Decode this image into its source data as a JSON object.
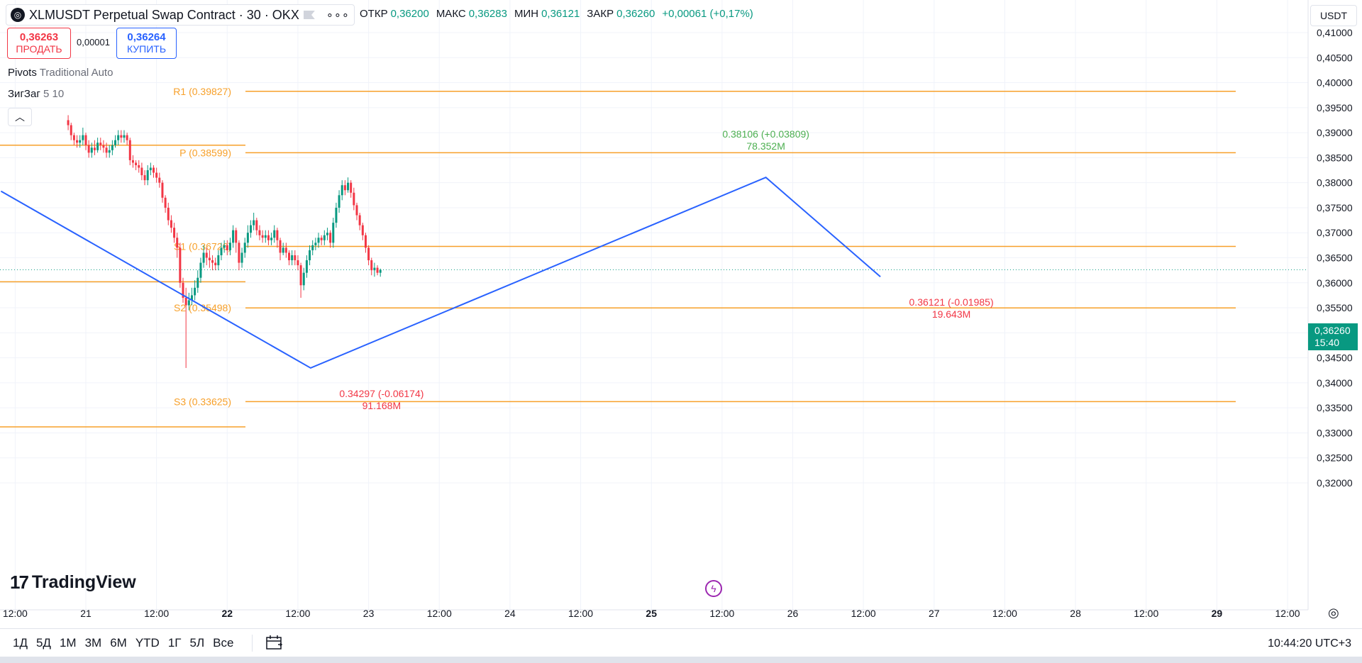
{
  "header": {
    "symbol_title": "XLMUSDT Perpetual Swap Contract · 30 · OKX",
    "more_icon": "more-dots-icon",
    "ohlc": [
      {
        "key": "ОТКР",
        "value": "0,36200"
      },
      {
        "key": "МАКС",
        "value": "0,36283"
      },
      {
        "key": "МИН",
        "value": "0,36121"
      },
      {
        "key": "ЗАКР",
        "value": "0,36260"
      }
    ],
    "change": "+0,00061 (+0,17%)"
  },
  "trade": {
    "sell_price": "0,36263",
    "sell_label": "ПРОДАТЬ",
    "spread": "0,00001",
    "buy_price": "0,36264",
    "buy_label": "КУПИТЬ"
  },
  "indicators": {
    "pivots_name": "Pivots",
    "pivots_args": "Traditional Auto",
    "zigzag_name": "ЗигЗаг",
    "zigzag_args": "5 10"
  },
  "currency": "USDT",
  "last_price": {
    "price": "0,36260",
    "countdown": "15:40"
  },
  "brand": "TradingView",
  "colors": {
    "up": "#089981",
    "down": "#f23645",
    "pivot": "#f7a02a",
    "zigzag": "#2962ff",
    "zz_high_label": "#4caf50",
    "zz_low_label": "#f23645"
  },
  "chart_data": {
    "type": "candlestick",
    "ylim": [
      0.3195,
      0.4135
    ],
    "y_ticks": [
      "0,41000",
      "0,40500",
      "0,40000",
      "0,39500",
      "0,39000",
      "0,38500",
      "0,38000",
      "0,37500",
      "0,37000",
      "0,36500",
      "0,36000",
      "0,35500",
      "0,35000",
      "0,34500",
      "0,34000",
      "0,33500",
      "0,33000",
      "0,32500",
      "0,32000"
    ],
    "x_ticks": [
      {
        "label": "12:00",
        "bold": false
      },
      {
        "label": "21",
        "bold": false
      },
      {
        "label": "12:00",
        "bold": false
      },
      {
        "label": "22",
        "bold": true
      },
      {
        "label": "12:00",
        "bold": false
      },
      {
        "label": "23",
        "bold": false
      },
      {
        "label": "12:00",
        "bold": false
      },
      {
        "label": "24",
        "bold": false
      },
      {
        "label": "12:00",
        "bold": false
      },
      {
        "label": "25",
        "bold": true
      },
      {
        "label": "12:00",
        "bold": false
      },
      {
        "label": "26",
        "bold": false
      },
      {
        "label": "12:00",
        "bold": false
      },
      {
        "label": "27",
        "bold": false
      },
      {
        "label": "12:00",
        "bold": false
      },
      {
        "label": "28",
        "bold": false
      },
      {
        "label": "12:00",
        "bold": false
      },
      {
        "label": "29",
        "bold": true
      },
      {
        "label": "12:00",
        "bold": false
      }
    ],
    "pivots_previous": [
      {
        "label": "",
        "value": 0.3875
      },
      {
        "label": "",
        "value": 0.3602
      },
      {
        "label": "",
        "value": 0.3312
      }
    ],
    "pivots_current": [
      {
        "label": "R1 (0.39827)",
        "value": 0.39827
      },
      {
        "label": "P (0.38599)",
        "value": 0.38599
      },
      {
        "label": "S1 (0.36726)",
        "value": 0.36726
      },
      {
        "label": "S2 (0.35498)",
        "value": 0.35498
      },
      {
        "label": "S3 (0.33625)",
        "value": 0.33625
      }
    ],
    "zigzag": {
      "points": [
        [
          -0.6,
          0.3783
        ],
        [
          1.59,
          0.34297
        ],
        [
          4.81,
          0.38106
        ],
        [
          5.62,
          0.36121
        ]
      ],
      "labels": [
        {
          "text": "0.34297 (-0.06174)",
          "volume": "91.168M",
          "type": "low"
        },
        {
          "text": "0.38106 (+0.03809)",
          "volume": "78.352M",
          "type": "high"
        },
        {
          "text": "0.36121 (-0.01985)",
          "volume": "19.643M",
          "type": "low"
        }
      ]
    },
    "last_price": 0.3626,
    "candles": [
      [
        0.3925,
        0.3915,
        0.3935,
        0.3905
      ],
      [
        0.3915,
        0.3895,
        0.392,
        0.3885
      ],
      [
        0.3895,
        0.3885,
        0.39,
        0.3875
      ],
      [
        0.3885,
        0.388,
        0.3895,
        0.387
      ],
      [
        0.388,
        0.3885,
        0.3895,
        0.387
      ],
      [
        0.3885,
        0.3895,
        0.391,
        0.3875
      ],
      [
        0.3895,
        0.3875,
        0.39,
        0.3865
      ],
      [
        0.3875,
        0.386,
        0.3885,
        0.385
      ],
      [
        0.386,
        0.387,
        0.388,
        0.385
      ],
      [
        0.387,
        0.3865,
        0.3885,
        0.3855
      ],
      [
        0.3865,
        0.388,
        0.389,
        0.386
      ],
      [
        0.388,
        0.3875,
        0.389,
        0.3865
      ],
      [
        0.3875,
        0.387,
        0.3885,
        0.386
      ],
      [
        0.387,
        0.386,
        0.388,
        0.385
      ],
      [
        0.386,
        0.3865,
        0.3875,
        0.385
      ],
      [
        0.3865,
        0.3875,
        0.3885,
        0.3855
      ],
      [
        0.3875,
        0.3885,
        0.3895,
        0.387
      ],
      [
        0.3885,
        0.3895,
        0.3905,
        0.3875
      ],
      [
        0.3895,
        0.389,
        0.3905,
        0.388
      ],
      [
        0.389,
        0.3895,
        0.3905,
        0.388
      ],
      [
        0.3895,
        0.3885,
        0.39,
        0.3875
      ],
      [
        0.3885,
        0.3845,
        0.389,
        0.3835
      ],
      [
        0.3845,
        0.384,
        0.3855,
        0.383
      ],
      [
        0.384,
        0.3835,
        0.3845,
        0.3825
      ],
      [
        0.3835,
        0.383,
        0.3845,
        0.382
      ],
      [
        0.383,
        0.3815,
        0.384,
        0.3805
      ],
      [
        0.3815,
        0.3805,
        0.3825,
        0.3795
      ],
      [
        0.3805,
        0.3825,
        0.3835,
        0.3795
      ],
      [
        0.3825,
        0.383,
        0.384,
        0.3815
      ],
      [
        0.383,
        0.382,
        0.3835,
        0.381
      ],
      [
        0.382,
        0.381,
        0.383,
        0.38
      ],
      [
        0.381,
        0.38,
        0.382,
        0.379
      ],
      [
        0.38,
        0.377,
        0.3805,
        0.376
      ],
      [
        0.377,
        0.375,
        0.3775,
        0.374
      ],
      [
        0.375,
        0.3725,
        0.376,
        0.3715
      ],
      [
        0.3725,
        0.371,
        0.3735,
        0.37
      ],
      [
        0.371,
        0.369,
        0.372,
        0.368
      ],
      [
        0.369,
        0.367,
        0.37,
        0.365
      ],
      [
        0.367,
        0.36,
        0.368,
        0.359
      ],
      [
        0.36,
        0.357,
        0.361,
        0.356
      ],
      [
        0.357,
        0.3555,
        0.359,
        0.34297
      ],
      [
        0.3555,
        0.3565,
        0.358,
        0.3545
      ],
      [
        0.3565,
        0.3575,
        0.359,
        0.3555
      ],
      [
        0.3575,
        0.359,
        0.3605,
        0.3565
      ],
      [
        0.359,
        0.361,
        0.3625,
        0.358
      ],
      [
        0.361,
        0.364,
        0.365,
        0.36
      ],
      [
        0.364,
        0.366,
        0.3675,
        0.363
      ],
      [
        0.366,
        0.365,
        0.367,
        0.3635
      ],
      [
        0.365,
        0.3645,
        0.3665,
        0.363
      ],
      [
        0.3645,
        0.364,
        0.3655,
        0.3625
      ],
      [
        0.364,
        0.3635,
        0.365,
        0.3625
      ],
      [
        0.3635,
        0.3655,
        0.3665,
        0.3625
      ],
      [
        0.3655,
        0.367,
        0.368,
        0.3645
      ],
      [
        0.367,
        0.3675,
        0.3685,
        0.366
      ],
      [
        0.3675,
        0.3665,
        0.3685,
        0.3655
      ],
      [
        0.3665,
        0.368,
        0.369,
        0.3655
      ],
      [
        0.368,
        0.3705,
        0.3715,
        0.367
      ],
      [
        0.3705,
        0.368,
        0.371,
        0.366
      ],
      [
        0.368,
        0.364,
        0.3685,
        0.3625
      ],
      [
        0.364,
        0.366,
        0.367,
        0.363
      ],
      [
        0.366,
        0.368,
        0.369,
        0.365
      ],
      [
        0.368,
        0.37,
        0.3715,
        0.367
      ],
      [
        0.37,
        0.3715,
        0.3725,
        0.369
      ],
      [
        0.3715,
        0.3725,
        0.374,
        0.3705
      ],
      [
        0.3725,
        0.3705,
        0.373,
        0.3695
      ],
      [
        0.3705,
        0.3695,
        0.3715,
        0.3685
      ],
      [
        0.3695,
        0.369,
        0.3705,
        0.368
      ],
      [
        0.369,
        0.3695,
        0.3705,
        0.368
      ],
      [
        0.3695,
        0.3685,
        0.3705,
        0.3675
      ],
      [
        0.3685,
        0.369,
        0.37,
        0.3675
      ],
      [
        0.369,
        0.3705,
        0.3715,
        0.368
      ],
      [
        0.3705,
        0.3685,
        0.371,
        0.367
      ],
      [
        0.3685,
        0.366,
        0.369,
        0.3645
      ],
      [
        0.366,
        0.367,
        0.368,
        0.3655
      ],
      [
        0.367,
        0.366,
        0.368,
        0.365
      ],
      [
        0.366,
        0.3645,
        0.3665,
        0.3635
      ],
      [
        0.3645,
        0.3655,
        0.3665,
        0.3635
      ],
      [
        0.3655,
        0.3645,
        0.3665,
        0.3635
      ],
      [
        0.3645,
        0.3635,
        0.3655,
        0.3625
      ],
      [
        0.3635,
        0.3595,
        0.364,
        0.357
      ],
      [
        0.3595,
        0.362,
        0.363,
        0.3585
      ],
      [
        0.362,
        0.3645,
        0.3655,
        0.361
      ],
      [
        0.3645,
        0.3665,
        0.3675,
        0.3635
      ],
      [
        0.3665,
        0.3675,
        0.3685,
        0.3655
      ],
      [
        0.3675,
        0.368,
        0.369,
        0.3665
      ],
      [
        0.368,
        0.369,
        0.37,
        0.367
      ],
      [
        0.369,
        0.3685,
        0.3695,
        0.3675
      ],
      [
        0.3685,
        0.3695,
        0.3705,
        0.3675
      ],
      [
        0.3695,
        0.37,
        0.371,
        0.3685
      ],
      [
        0.37,
        0.368,
        0.3705,
        0.367
      ],
      [
        0.368,
        0.372,
        0.373,
        0.367
      ],
      [
        0.372,
        0.375,
        0.376,
        0.371
      ],
      [
        0.375,
        0.3775,
        0.3785,
        0.374
      ],
      [
        0.3775,
        0.3795,
        0.3805,
        0.3765
      ],
      [
        0.3795,
        0.3785,
        0.3805,
        0.3775
      ],
      [
        0.3785,
        0.38,
        0.38106,
        0.378
      ],
      [
        0.38,
        0.378,
        0.3805,
        0.377
      ],
      [
        0.378,
        0.3755,
        0.379,
        0.3745
      ],
      [
        0.3755,
        0.3735,
        0.376,
        0.3725
      ],
      [
        0.3735,
        0.3715,
        0.374,
        0.3705
      ],
      [
        0.3715,
        0.3695,
        0.372,
        0.3685
      ],
      [
        0.3695,
        0.367,
        0.37,
        0.366
      ],
      [
        0.367,
        0.3645,
        0.3675,
        0.3635
      ],
      [
        0.3645,
        0.3625,
        0.365,
        0.3615
      ],
      [
        0.3625,
        0.363,
        0.364,
        0.36121
      ],
      [
        0.363,
        0.362,
        0.3635,
        0.3615
      ],
      [
        0.362,
        0.3626,
        0.36283,
        0.36121
      ]
    ]
  },
  "bottom": {
    "ranges": [
      "1Д",
      "5Д",
      "1М",
      "3М",
      "6М",
      "YTD",
      "1Г",
      "5Л",
      "Все"
    ],
    "date_range_icon": "calendar-icon",
    "clock": "10:44:20 UTC+3"
  }
}
